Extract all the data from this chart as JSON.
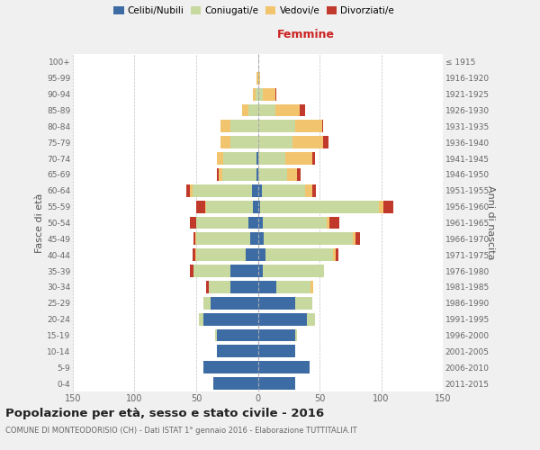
{
  "age_groups": [
    "0-4",
    "5-9",
    "10-14",
    "15-19",
    "20-24",
    "25-29",
    "30-34",
    "35-39",
    "40-44",
    "45-49",
    "50-54",
    "55-59",
    "60-64",
    "65-69",
    "70-74",
    "75-79",
    "80-84",
    "85-89",
    "90-94",
    "95-99",
    "100+"
  ],
  "birth_years": [
    "2011-2015",
    "2006-2010",
    "2001-2005",
    "1996-2000",
    "1991-1995",
    "1986-1990",
    "1981-1985",
    "1976-1980",
    "1971-1975",
    "1966-1970",
    "1961-1965",
    "1956-1960",
    "1951-1955",
    "1946-1950",
    "1941-1945",
    "1936-1940",
    "1931-1935",
    "1926-1930",
    "1921-1925",
    "1916-1920",
    "≤ 1915"
  ],
  "colors": {
    "celibe": "#3d6ca5",
    "coniugato": "#c8d9a0",
    "vedovo": "#f2c46e",
    "divorziato": "#c0392b"
  },
  "male": {
    "celibe": [
      36,
      44,
      33,
      33,
      44,
      38,
      22,
      22,
      10,
      6,
      8,
      4,
      5,
      1,
      1,
      0,
      0,
      0,
      0,
      0,
      0
    ],
    "coniugato": [
      0,
      0,
      0,
      2,
      4,
      6,
      18,
      30,
      40,
      44,
      42,
      38,
      48,
      28,
      27,
      22,
      22,
      8,
      2,
      0,
      0
    ],
    "vedovo": [
      0,
      0,
      0,
      0,
      0,
      0,
      0,
      0,
      1,
      1,
      0,
      1,
      2,
      3,
      5,
      8,
      8,
      5,
      2,
      1,
      0
    ],
    "divorziato": [
      0,
      0,
      0,
      0,
      0,
      0,
      2,
      3,
      2,
      1,
      5,
      7,
      3,
      1,
      0,
      0,
      0,
      0,
      0,
      0,
      0
    ]
  },
  "female": {
    "nubile": [
      30,
      42,
      30,
      30,
      40,
      30,
      15,
      4,
      6,
      5,
      4,
      2,
      3,
      0,
      0,
      0,
      0,
      0,
      0,
      0,
      0
    ],
    "coniugata": [
      0,
      0,
      0,
      2,
      6,
      14,
      28,
      50,
      55,
      72,
      52,
      96,
      35,
      24,
      22,
      28,
      30,
      14,
      4,
      1,
      0
    ],
    "vedova": [
      0,
      0,
      0,
      0,
      0,
      0,
      2,
      0,
      2,
      2,
      2,
      4,
      6,
      8,
      22,
      25,
      22,
      20,
      10,
      1,
      0
    ],
    "divorziata": [
      0,
      0,
      0,
      0,
      0,
      0,
      0,
      0,
      2,
      4,
      8,
      8,
      3,
      3,
      2,
      4,
      1,
      4,
      1,
      0,
      0
    ]
  },
  "xlim": 150,
  "title": "Popolazione per età, sesso e stato civile - 2016",
  "subtitle": "COMUNE DI MONTEODORISIO (CH) - Dati ISTAT 1° gennaio 2016 - Elaborazione TUTTITALIA.IT",
  "ylabel_left": "Fasce di età",
  "ylabel_right": "Anni di nascita",
  "label_femmine": "Femmine",
  "bg_color": "#f0f0f0",
  "plot_bg": "#ffffff",
  "legend": [
    "Celibi/Nubili",
    "Coniugati/e",
    "Vedovi/e",
    "Divorziati/e"
  ]
}
